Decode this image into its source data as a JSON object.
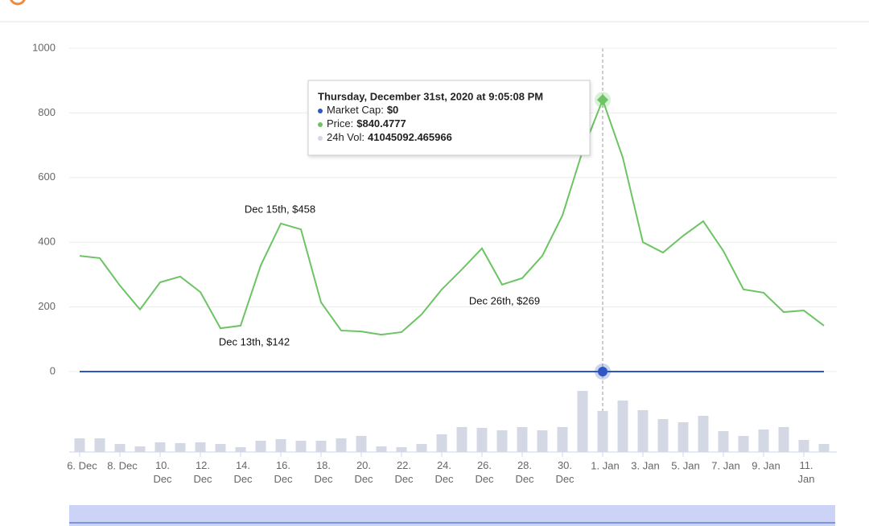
{
  "chart_data": {
    "type": "line",
    "categories": [
      "6. Dec",
      null,
      "8. Dec",
      null,
      "10. Dec",
      null,
      "12. Dec",
      null,
      "14. Dec",
      null,
      "16. Dec",
      null,
      "18. Dec",
      null,
      "20. Dec",
      null,
      "22. Dec",
      null,
      "24. Dec",
      null,
      "26. Dec",
      null,
      "28. Dec",
      null,
      "30. Dec",
      null,
      "1. Jan",
      null,
      "3. Jan",
      null,
      "5. Jan",
      null,
      "7. Jan",
      null,
      "9. Jan",
      null,
      "11. Jan",
      null
    ],
    "series": [
      {
        "name": "Market Cap",
        "color": "#3056c4",
        "values": [
          0,
          0,
          0,
          0,
          0,
          0,
          0,
          0,
          0,
          0,
          0,
          0,
          0,
          0,
          0,
          0,
          0,
          0,
          0,
          0,
          0,
          0,
          0,
          0,
          0,
          0,
          0,
          0,
          0,
          0,
          0,
          0,
          0,
          0,
          0,
          0,
          0,
          0
        ]
      },
      {
        "name": "Price",
        "color": "#6cc464",
        "values": [
          358,
          351,
          266,
          192,
          276,
          294,
          246,
          134,
          142,
          328,
          458,
          440,
          214,
          127,
          124,
          114,
          122,
          177,
          254,
          316,
          381,
          269,
          289,
          358,
          483,
          682,
          840.4777,
          662,
          400,
          368,
          420,
          465,
          373,
          254,
          244,
          184,
          189,
          142
        ]
      },
      {
        "name": "24h Vol",
        "color": "#d3d8e4",
        "axis": "y2",
        "type": "bar",
        "values": [
          13700000,
          13700000,
          8000000,
          5600000,
          9700000,
          8900000,
          9700000,
          8000000,
          4800000,
          11300000,
          12900000,
          11300000,
          11300000,
          13700000,
          16100000,
          5600000,
          4800000,
          8000000,
          17700000,
          25000000,
          24200000,
          21700000,
          25000000,
          21700000,
          25000000,
          61200000,
          41045092.465966,
          51500000,
          41900000,
          33000000,
          29800000,
          36200000,
          20900000,
          16100000,
          22500000,
          25000000,
          12100000,
          8000000
        ]
      }
    ],
    "ylim": [
      0,
      1000
    ],
    "yticks": [
      0,
      200,
      400,
      600,
      800,
      1000
    ],
    "y2lim": [
      0,
      66000000
    ],
    "grid": true,
    "annotations": [
      {
        "text": "Dec 15th, $458"
      },
      {
        "text": "Dec 13th, $142"
      },
      {
        "text": "Dec 26th, $269"
      }
    ],
    "tooltip": {
      "title": "Thursday, December 31st, 2020 at 9:05:08 PM",
      "rows": [
        {
          "label": "Market Cap:",
          "value": "$0"
        },
        {
          "label": "Price:",
          "value": "$840.4777"
        },
        {
          "label": "24h Vol:",
          "value": "41045092.465966"
        }
      ]
    }
  }
}
